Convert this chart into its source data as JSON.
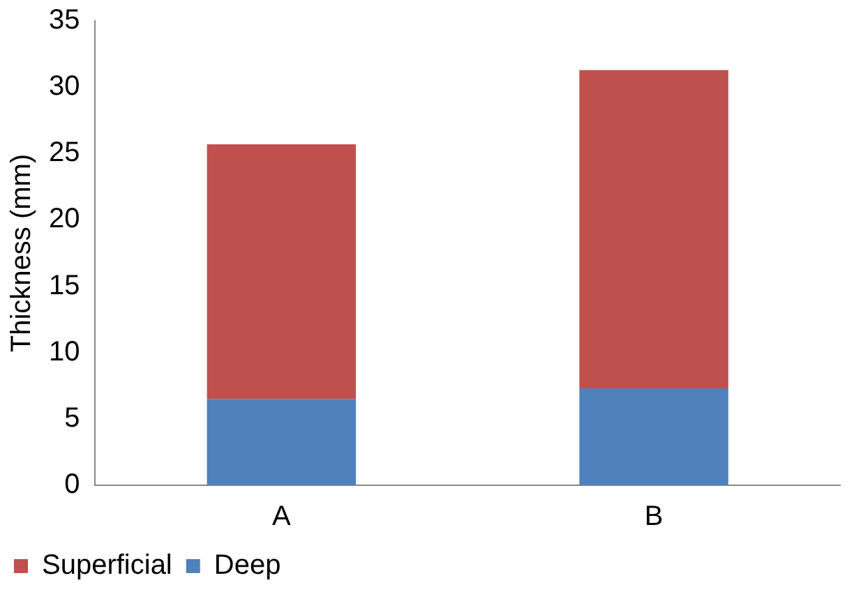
{
  "chart_data": {
    "type": "bar",
    "ylabel": "Thickness (mm)",
    "categories": [
      "A",
      "B"
    ],
    "stacked": true,
    "series": [
      {
        "name": "Deep",
        "color": "#4f81bd",
        "values": [
          6.5,
          7.3
        ]
      },
      {
        "name": "Superficial",
        "color": "#c0504d",
        "values": [
          19.2,
          24.0
        ]
      }
    ],
    "ylim": [
      0,
      35
    ],
    "yticks": [
      0,
      5,
      10,
      15,
      20,
      25,
      30,
      35
    ],
    "grid": false,
    "legend": "bottom left"
  }
}
